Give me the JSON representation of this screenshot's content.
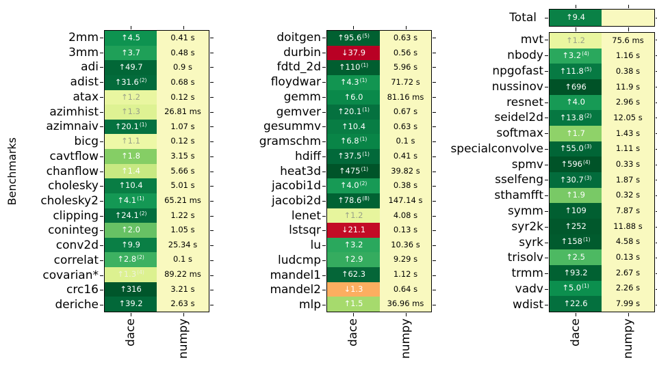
{
  "chart_data": {
    "type": "heatmap",
    "title": "",
    "ylabel": "Benchmarks",
    "columns": [
      "dace",
      "numpy"
    ],
    "legend_position": "none",
    "grid": false,
    "colors": {
      "background": "#ffffff",
      "border": "#000000",
      "numpy_cell": "#f9f9bf",
      "default_value_text": "#ffffff",
      "dim_value_text": "#99a189",
      "speedup_dark_green": "#005227",
      "slowdown_red": "#b90024",
      "slowdown_orange": "#fcae60"
    },
    "total": {
      "label": "Total",
      "speedup": "↑9.4",
      "sup": "",
      "time": "",
      "bg": "#0a8146",
      "fg": "#ffffff"
    },
    "groups": [
      {
        "rows": [
          {
            "label": "2mm",
            "speedup": "↑4.5",
            "sup": "",
            "time": "0.41 s",
            "bg": "#0e9350"
          },
          {
            "label": "3mm",
            "speedup": "↑3.7",
            "sup": "",
            "time": "0.48 s",
            "bg": "#1fa058"
          },
          {
            "label": "adi",
            "speedup": "↑49.7",
            "sup": "",
            "time": "0.9 s",
            "bg": "#026737"
          },
          {
            "label": "adist",
            "speedup": "↑31.6",
            "sup": "(2)",
            "time": "0.68 s",
            "bg": "#036b3b"
          },
          {
            "label": "atax",
            "speedup": "↑1.2",
            "sup": "",
            "time": "0.12 s",
            "bg": "#e9f6a0",
            "fg": "#99a189"
          },
          {
            "label": "azimhist",
            "speedup": "↑1.3",
            "sup": "",
            "time": "26.81 ms",
            "bg": "#def293",
            "fg": "#99a189"
          },
          {
            "label": "azimnaiv",
            "speedup": "↑20.1",
            "sup": "(1)",
            "time": "1.07 s",
            "bg": "#057240"
          },
          {
            "label": "bicg",
            "speedup": "↑1.1",
            "sup": "",
            "time": "0.12 s",
            "bg": "#edf8a6",
            "fg": "#99a189"
          },
          {
            "label": "cavtflow",
            "speedup": "↑1.8",
            "sup": "",
            "time": "3.15 s",
            "bg": "#85ce65"
          },
          {
            "label": "chanflow",
            "speedup": "↑1.4",
            "sup": "",
            "time": "5.66 s",
            "bg": "#c8e982"
          },
          {
            "label": "cholesky",
            "speedup": "↑10.4",
            "sup": "",
            "time": "5.01 s",
            "bg": "#097d44"
          },
          {
            "label": "cholesky2",
            "speedup": "↑4.1",
            "sup": "(1)",
            "time": "65.21 ms",
            "bg": "#149854"
          },
          {
            "label": "clipping",
            "speedup": "↑24.1",
            "sup": "(2)",
            "time": "1.22 s",
            "bg": "#046e3d"
          },
          {
            "label": "coninteg",
            "speedup": "↑2.0",
            "sup": "",
            "time": "1.05 s",
            "bg": "#67c164"
          },
          {
            "label": "conv2d",
            "speedup": "↑9.9",
            "sup": "",
            "time": "25.34 s",
            "bg": "#0a7f45"
          },
          {
            "label": "correlat",
            "speedup": "↑2.8",
            "sup": "(2)",
            "time": "0.1 s",
            "bg": "#3db161"
          },
          {
            "label": "covarian*",
            "speedup": "↑1.3",
            "sup": "(4)",
            "time": "89.22 ms",
            "bg": "#dcf190",
            "fg": "#eef2da"
          },
          {
            "label": "crc16",
            "speedup": "↑316",
            "sup": "",
            "time": "3.21 s",
            "bg": "#00562b"
          },
          {
            "label": "deriche",
            "speedup": "↑39.2",
            "sup": "",
            "time": "2.63 s",
            "bg": "#026839"
          }
        ]
      },
      {
        "rows": [
          {
            "label": "doitgen",
            "speedup": "↑95.6",
            "sup": "(5)",
            "time": "0.63 s",
            "bg": "#016031"
          },
          {
            "label": "durbin",
            "speedup": "↓37.9",
            "sup": "",
            "time": "0.56 s",
            "bg": "#b90024"
          },
          {
            "label": "fdtd_2d",
            "speedup": "↑110",
            "sup": "(1)",
            "time": "5.96 s",
            "bg": "#015e30"
          },
          {
            "label": "floydwar",
            "speedup": "↑4.3",
            "sup": "(1)",
            "time": "71.72 s",
            "bg": "#129551"
          },
          {
            "label": "gemm",
            "speedup": "↑6.0",
            "sup": "",
            "time": "81.16 ms",
            "bg": "#0a894a"
          },
          {
            "label": "gemver",
            "speedup": "↑20.1",
            "sup": "(1)",
            "time": "0.67 s",
            "bg": "#05713f"
          },
          {
            "label": "gesummv",
            "speedup": "↑10.4",
            "sup": "",
            "time": "0.63 s",
            "bg": "#087d44"
          },
          {
            "label": "gramschm",
            "speedup": "↑6.8",
            "sup": "(1)",
            "time": "0.1 s",
            "bg": "#098547"
          },
          {
            "label": "hdiff",
            "speedup": "↑37.5",
            "sup": "(1)",
            "time": "0.41 s",
            "bg": "#02693a"
          },
          {
            "label": "heat3d",
            "speedup": "↑475",
            "sup": "(1)",
            "time": "39.82 s",
            "bg": "#005429"
          },
          {
            "label": "jacobi1d",
            "speedup": "↑4.0",
            "sup": "(2)",
            "time": "0.38 s",
            "bg": "#179a55"
          },
          {
            "label": "jacobi2d",
            "speedup": "↑78.6",
            "sup": "(8)",
            "time": "147.14 s",
            "bg": "#016233"
          },
          {
            "label": "lenet",
            "speedup": "↑1.2",
            "sup": "",
            "time": "4.08 s",
            "bg": "#e7f59d",
            "fg": "#99a189"
          },
          {
            "label": "lstsqr",
            "speedup": "↓21.1",
            "sup": "",
            "time": "0.13 s",
            "bg": "#c30b26"
          },
          {
            "label": "lu",
            "speedup": "↑3.2",
            "sup": "",
            "time": "10.36 s",
            "bg": "#2aa85d"
          },
          {
            "label": "ludcmp",
            "speedup": "↑2.9",
            "sup": "",
            "time": "9.29 s",
            "bg": "#35ac5f"
          },
          {
            "label": "mandel1",
            "speedup": "↑62.3",
            "sup": "",
            "time": "1.12 s",
            "bg": "#056638"
          },
          {
            "label": "mandel2",
            "speedup": "↓1.3",
            "sup": "",
            "time": "0.64 s",
            "bg": "#fcae60"
          },
          {
            "label": "mlp",
            "speedup": "↑1.5",
            "sup": "",
            "time": "36.96 ms",
            "bg": "#a6da6d"
          }
        ]
      },
      {
        "rows": [
          {
            "label": "mvt",
            "speedup": "↑1.2",
            "sup": "",
            "time": "75.6 ms",
            "bg": "#e9f6a0",
            "fg": "#99a189"
          },
          {
            "label": "nbody",
            "speedup": "↑3.2",
            "sup": "(4)",
            "time": "1.16 s",
            "bg": "#2aa85d"
          },
          {
            "label": "npgofast",
            "speedup": "↑11.8",
            "sup": "(5)",
            "time": "0.38 s",
            "bg": "#077a43"
          },
          {
            "label": "nussinov",
            "speedup": "↑696",
            "sup": "",
            "time": "11.9 s",
            "bg": "#005227"
          },
          {
            "label": "resnet",
            "speedup": "↑4.0",
            "sup": "",
            "time": "2.96 s",
            "bg": "#179a55"
          },
          {
            "label": "seidel2d",
            "speedup": "↑13.8",
            "sup": "(2)",
            "time": "12.05 s",
            "bg": "#067741"
          },
          {
            "label": "softmax",
            "speedup": "↑1.7",
            "sup": "",
            "time": "1.43 s",
            "bg": "#8fd269"
          },
          {
            "label": "specialconvolve",
            "speedup": "↑55.0",
            "sup": "(3)",
            "time": "1.11 s",
            "bg": "#016536"
          },
          {
            "label": "spmv",
            "speedup": "↑596",
            "sup": "(4)",
            "time": "0.33 s",
            "bg": "#005328"
          },
          {
            "label": "sselfeng",
            "speedup": "↑30.7",
            "sup": "(3)",
            "time": "1.87 s",
            "bg": "#036c3c"
          },
          {
            "label": "sthamfft",
            "speedup": "↑1.9",
            "sup": "",
            "time": "0.32 s",
            "bg": "#79c966"
          },
          {
            "label": "symm",
            "speedup": "↑109",
            "sup": "",
            "time": "7.87 s",
            "bg": "#015f31"
          },
          {
            "label": "syr2k",
            "speedup": "↑252",
            "sup": "",
            "time": "11.88 s",
            "bg": "#01582c"
          },
          {
            "label": "syrk",
            "speedup": "↑158",
            "sup": "(1)",
            "time": "4.58 s",
            "bg": "#015b2e"
          },
          {
            "label": "trisolv",
            "speedup": "↑2.5",
            "sup": "",
            "time": "0.13 s",
            "bg": "#4db962"
          },
          {
            "label": "trmm",
            "speedup": "↑93.2",
            "sup": "",
            "time": "2.67 s",
            "bg": "#016132"
          },
          {
            "label": "vadv",
            "speedup": "↑5.0",
            "sup": "(1)",
            "time": "2.26 s",
            "bg": "#0c8f4e"
          },
          {
            "label": "wdist",
            "speedup": "↑22.6",
            "sup": "",
            "time": "7.99 s",
            "bg": "#04703e"
          }
        ]
      }
    ]
  }
}
